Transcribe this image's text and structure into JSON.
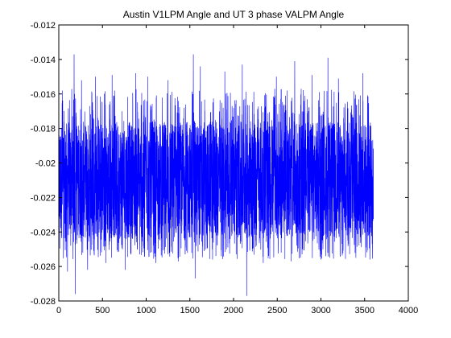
{
  "chart_data": {
    "type": "line",
    "title": "Austin V1LPM Angle and UT 3 phase VALPM Angle",
    "xlabel": "",
    "ylabel": "",
    "xlim": [
      0,
      4000
    ],
    "ylim": [
      -0.028,
      -0.012
    ],
    "x_ticks": [
      0,
      500,
      1000,
      1500,
      2000,
      2500,
      3000,
      3500,
      4000
    ],
    "x_tick_labels": [
      "0",
      "500",
      "1000",
      "1500",
      "2000",
      "2500",
      "3000",
      "3500",
      "4000"
    ],
    "y_ticks": [
      -0.012,
      -0.014,
      -0.016,
      -0.018,
      -0.02,
      -0.022,
      -0.024,
      -0.026,
      -0.028
    ],
    "y_tick_labels": [
      "-0.012",
      "-0.014",
      "-0.016",
      "-0.018",
      "-0.02",
      "-0.022",
      "-0.024",
      "-0.026",
      "-0.028"
    ],
    "grid": false,
    "series": [
      {
        "color": "#0000ff",
        "x_range": [
          1,
          3600
        ],
        "band": {
          "core_low": -0.0244,
          "core_high": -0.0176,
          "mean": -0.021
        },
        "extremes": [
          {
            "x": 40,
            "y": -0.0158
          },
          {
            "x": 100,
            "y": -0.0263
          },
          {
            "x": 175,
            "y": -0.0137
          },
          {
            "x": 190,
            "y": -0.0276
          },
          {
            "x": 260,
            "y": -0.0152
          },
          {
            "x": 330,
            "y": -0.0262
          },
          {
            "x": 420,
            "y": -0.015
          },
          {
            "x": 540,
            "y": -0.0258
          },
          {
            "x": 610,
            "y": -0.0149
          },
          {
            "x": 760,
            "y": -0.0262
          },
          {
            "x": 880,
            "y": -0.0148
          },
          {
            "x": 1020,
            "y": -0.015
          },
          {
            "x": 1110,
            "y": -0.0258
          },
          {
            "x": 1250,
            "y": -0.0152
          },
          {
            "x": 1370,
            "y": -0.0257
          },
          {
            "x": 1540,
            "y": -0.0137
          },
          {
            "x": 1560,
            "y": -0.0267
          },
          {
            "x": 1620,
            "y": -0.0144
          },
          {
            "x": 1760,
            "y": -0.0256
          },
          {
            "x": 1900,
            "y": -0.0147
          },
          {
            "x": 2100,
            "y": -0.0143
          },
          {
            "x": 2150,
            "y": -0.0277
          },
          {
            "x": 2340,
            "y": -0.0258
          },
          {
            "x": 2490,
            "y": -0.015
          },
          {
            "x": 2660,
            "y": -0.0257
          },
          {
            "x": 2700,
            "y": -0.0141
          },
          {
            "x": 2900,
            "y": -0.0149
          },
          {
            "x": 3000,
            "y": -0.0256
          },
          {
            "x": 3080,
            "y": -0.0139
          },
          {
            "x": 3200,
            "y": -0.0151
          },
          {
            "x": 3400,
            "y": -0.0255
          },
          {
            "x": 3480,
            "y": -0.0148
          },
          {
            "x": 3560,
            "y": -0.0256
          }
        ]
      }
    ]
  }
}
